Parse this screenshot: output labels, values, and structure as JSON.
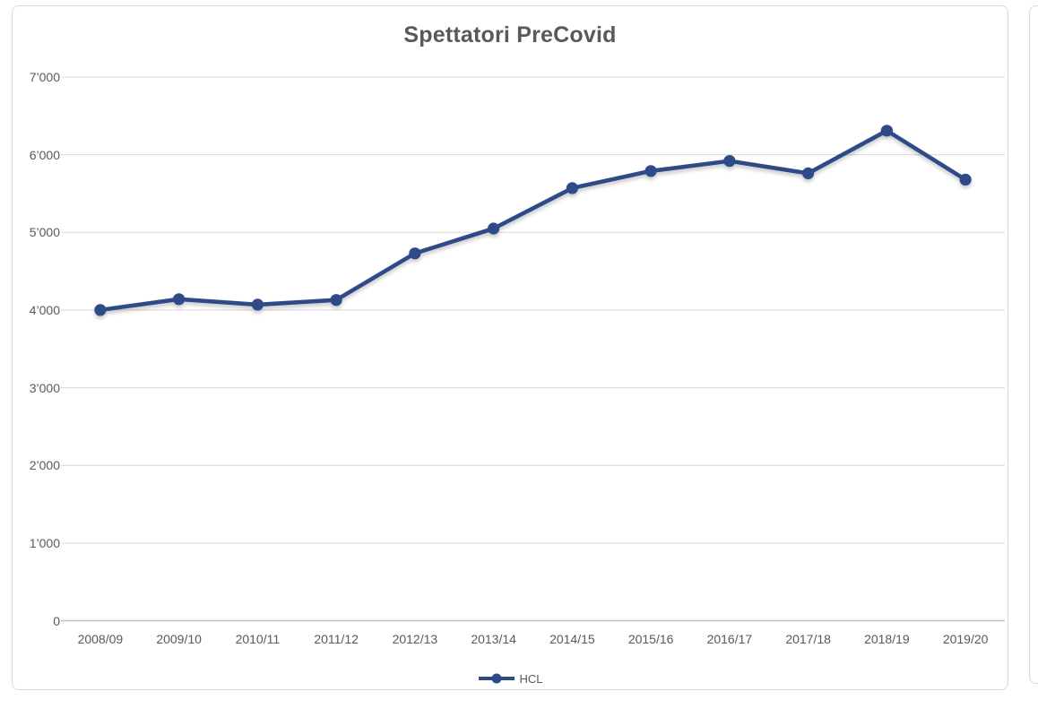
{
  "panel": {
    "border_color": "#d9d9d9",
    "background": "#ffffff"
  },
  "colors": {
    "gridline": "#d9d9d9",
    "axis_line": "#bfbfbf",
    "tick_label": "#595959",
    "title": "#595959"
  },
  "chart_data": {
    "type": "line",
    "title": "Spettatori PreCovid",
    "categories": [
      "2008/09",
      "2009/10",
      "2010/11",
      "2011/12",
      "2012/13",
      "2013/14",
      "2014/15",
      "2015/16",
      "2016/17",
      "2017/18",
      "2018/19",
      "2019/20"
    ],
    "series": [
      {
        "name": "HCL",
        "color": "#2d4b87",
        "values": [
          4000,
          4140,
          4070,
          4130,
          4730,
          5050,
          5570,
          5790,
          5920,
          5760,
          6310,
          5680
        ]
      }
    ],
    "xlabel": "",
    "ylabel": "",
    "ylim": [
      0,
      7000
    ],
    "ytick_step": 1000,
    "ytick_labels": [
      "0",
      "1’000",
      "2’000",
      "3’000",
      "4’000",
      "5’000",
      "6’000",
      "7’000"
    ],
    "grid": true,
    "legend_position": "bottom-center",
    "marker": "circle",
    "line_shadow": true
  }
}
